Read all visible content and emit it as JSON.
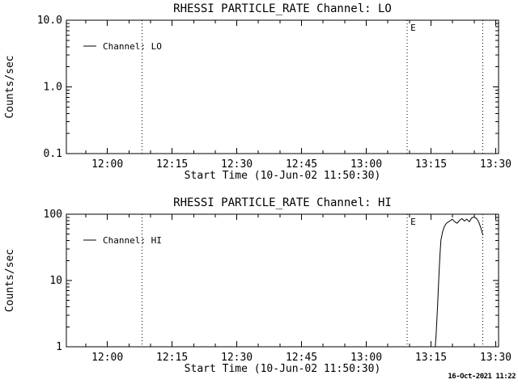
{
  "page": {
    "background_color": "#ffffff",
    "foreground_color": "#000000",
    "timestamp": "16-Oct-2021 11:22"
  },
  "chart_data": [
    {
      "type": "line",
      "title": "RHESSI PARTICLE_RATE Channel: LO",
      "ylabel": "Counts/sec",
      "xlabel": "Start Time (10-Jun-02 11:50:30)",
      "y_scale": "log",
      "ylim": [
        0.1,
        10
      ],
      "y_tick_values": [
        0.1,
        1,
        10
      ],
      "y_tick_labels": [
        "0.1",
        "1.0",
        "10.0"
      ],
      "x_start": "11:50:30",
      "x_end": "13:30:40",
      "x_major_ticks": [
        "12:00",
        "12:15",
        "12:30",
        "12:45",
        "13:00",
        "13:15",
        "13:30"
      ],
      "x_minor_step_min": 5,
      "grid": false,
      "legend": {
        "label": "Channel: LO",
        "position": "upper-left-inside"
      },
      "vlines": [
        {
          "time": "12:08:00",
          "label": ""
        },
        {
          "time": "13:09:30",
          "label": "E"
        },
        {
          "time": "13:27:00",
          "label": ""
        }
      ],
      "series": [
        {
          "name": "Channel: LO",
          "points": []
        }
      ]
    },
    {
      "type": "line",
      "title": "RHESSI PARTICLE_RATE Channel: HI",
      "ylabel": "Counts/sec",
      "xlabel": "Start Time (10-Jun-02 11:50:30)",
      "y_scale": "log",
      "ylim": [
        1,
        100
      ],
      "y_tick_values": [
        1,
        10,
        100
      ],
      "y_tick_labels": [
        "1",
        "10",
        "100"
      ],
      "x_start": "11:50:30",
      "x_end": "13:30:40",
      "x_major_ticks": [
        "12:00",
        "12:15",
        "12:30",
        "12:45",
        "13:00",
        "13:15",
        "13:30"
      ],
      "x_minor_step_min": 5,
      "grid": false,
      "legend": {
        "label": "Channel: HI",
        "position": "upper-left-inside"
      },
      "vlines": [
        {
          "time": "12:08:00",
          "label": ""
        },
        {
          "time": "13:09:30",
          "label": "E"
        },
        {
          "time": "13:27:00",
          "label": ""
        }
      ],
      "series": [
        {
          "name": "Channel: HI",
          "points": [
            [
              "13:16:00",
              1.0
            ],
            [
              "13:16:11",
              1.5
            ],
            [
              "13:16:22",
              2.6
            ],
            [
              "13:16:34",
              4.6
            ],
            [
              "13:16:45",
              8.7
            ],
            [
              "13:16:56",
              16
            ],
            [
              "13:17:08",
              28
            ],
            [
              "13:17:19",
              41
            ],
            [
              "13:17:41",
              54
            ],
            [
              "13:18:04",
              64
            ],
            [
              "13:18:26",
              71
            ],
            [
              "13:18:49",
              75
            ],
            [
              "13:19:23",
              79
            ],
            [
              "13:19:57",
              84
            ],
            [
              "13:20:30",
              77
            ],
            [
              "13:21:04",
              73
            ],
            [
              "13:21:38",
              81
            ],
            [
              "13:22:11",
              86
            ],
            [
              "13:22:45",
              79
            ],
            [
              "13:23:19",
              84
            ],
            [
              "13:23:53",
              77
            ],
            [
              "13:24:26",
              88
            ],
            [
              "13:25:00",
              91
            ],
            [
              "13:25:34",
              86
            ],
            [
              "13:25:57",
              79
            ],
            [
              "13:26:19",
              69
            ],
            [
              "13:26:41",
              58
            ],
            [
              "13:26:53",
              52
            ],
            [
              "13:27:04",
              48
            ]
          ]
        }
      ]
    }
  ]
}
